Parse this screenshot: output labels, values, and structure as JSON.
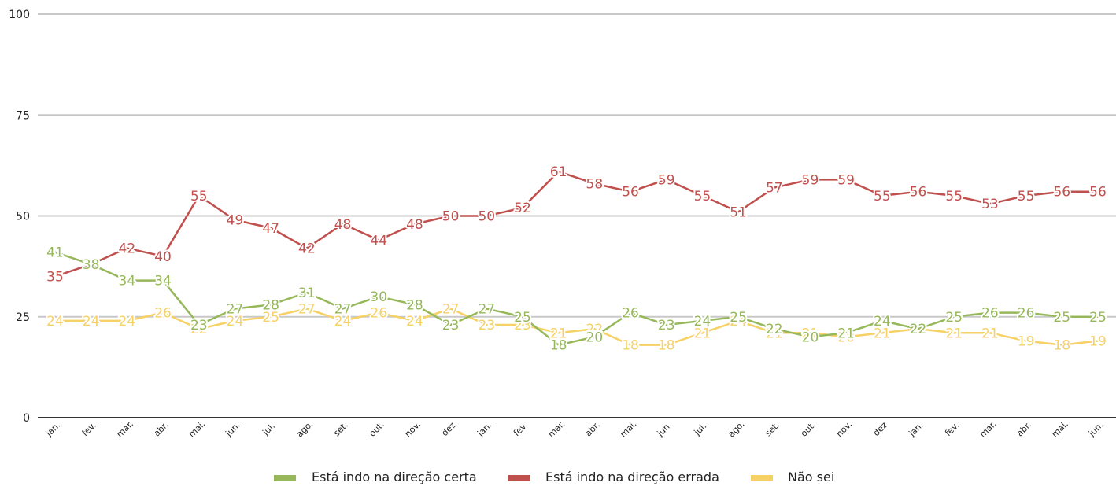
{
  "chart_data": {
    "type": "line",
    "categories": [
      "jan.",
      "fev.",
      "mar.",
      "abr.",
      "mai.",
      "jun.",
      "jul.",
      "ago.",
      "set.",
      "out.",
      "nov.",
      "dez",
      "jan.",
      "fev.",
      "mar.",
      "abr.",
      "mai.",
      "jun.",
      "jul.",
      "ago.",
      "set.",
      "out.",
      "nov.",
      "dez",
      "jan.",
      "fev.",
      "mar.",
      "abr.",
      "mai.",
      "jun."
    ],
    "series": [
      {
        "name": "Está indo na direção certa",
        "color": "#96b85a",
        "values": [
          41,
          38,
          34,
          34,
          23,
          27,
          28,
          31,
          27,
          30,
          28,
          23,
          27,
          25,
          18,
          20,
          26,
          23,
          24,
          25,
          22,
          20,
          21,
          24,
          22,
          25,
          26,
          26,
          25,
          25
        ]
      },
      {
        "name": "Está indo na direção errada",
        "color": "#c0504d",
        "values": [
          35,
          38,
          42,
          40,
          55,
          49,
          47,
          42,
          48,
          44,
          48,
          50,
          50,
          52,
          61,
          58,
          56,
          59,
          55,
          51,
          57,
          59,
          59,
          55,
          56,
          55,
          53,
          55,
          56,
          56
        ]
      },
      {
        "name": "Não sei",
        "color": "#f5d166",
        "values": [
          24,
          24,
          24,
          26,
          22,
          24,
          25,
          27,
          24,
          26,
          24,
          27,
          23,
          23,
          21,
          22,
          18,
          18,
          21,
          24,
          21,
          21,
          20,
          21,
          22,
          21,
          21,
          19,
          18,
          19
        ]
      }
    ],
    "ylim": [
      0,
      100
    ],
    "yticks": [
      0,
      25,
      50,
      75,
      100
    ],
    "grid": true,
    "legend_position": "bottom"
  }
}
